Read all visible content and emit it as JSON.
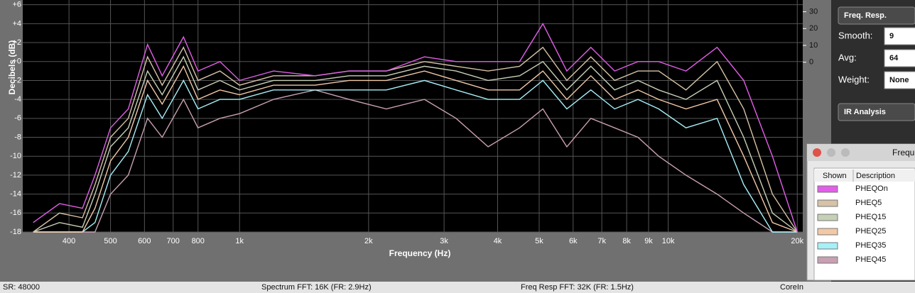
{
  "chart_data": {
    "type": "line",
    "y_label": "Decibels (dB)",
    "x_label": "Frequency (Hz)",
    "xscale": "log",
    "grid": true,
    "x": [
      330,
      380,
      430,
      460,
      500,
      550,
      610,
      660,
      740,
      800,
      900,
      1000,
      1200,
      1500,
      1800,
      2200,
      2700,
      3200,
      3800,
      4500,
      5100,
      5800,
      6600,
      7500,
      8500,
      9500,
      11000,
      13000,
      15000,
      17500,
      20000
    ],
    "xlim": [
      312,
      20600
    ],
    "xticks": [
      400,
      500,
      600,
      700,
      800,
      {
        "value": 1000,
        "label": "1k"
      },
      {
        "value": 2000,
        "label": "2k"
      },
      {
        "value": 3000,
        "label": "3k"
      },
      {
        "value": 4000,
        "label": "4k"
      },
      {
        "value": 5000,
        "label": "5k"
      },
      {
        "value": 6000,
        "label": "6k"
      },
      {
        "value": 7000,
        "label": "7k"
      },
      {
        "value": 8000,
        "label": "8k"
      },
      {
        "value": 9000,
        "label": "9k"
      },
      {
        "value": 10000,
        "label": "10k"
      },
      {
        "value": 20000,
        "label": "20k"
      }
    ],
    "ylim": [
      -18,
      6.5
    ],
    "yticks": [
      {
        "value": 6,
        "label": "+6"
      },
      {
        "value": 4,
        "label": "+4"
      },
      {
        "value": 2,
        "label": "+2"
      },
      {
        "value": 0,
        "label": "+0"
      },
      -2,
      -4,
      -6,
      -8,
      -10,
      -12,
      -14,
      -16,
      -18
    ],
    "y2lim": [
      -101,
      37
    ],
    "y2ticks": [
      0,
      10,
      20,
      30
    ],
    "series": [
      {
        "name": "PHEQOn",
        "color": "#e25ee8",
        "values": [
          -17,
          -15,
          -15.5,
          -12,
          -7,
          -5,
          1.8,
          -1.5,
          2.6,
          -1,
          0,
          -2,
          -1,
          -1.5,
          -1,
          -1,
          0.5,
          0,
          0,
          0,
          4,
          -1,
          1.5,
          -1,
          0,
          0,
          -1,
          1.5,
          -2,
          -10,
          -18
        ]
      },
      {
        "name": "PHEQ5",
        "color": "#d6c2a6",
        "values": [
          -18,
          -16,
          -16.5,
          -13,
          -8,
          -6,
          0.5,
          -2.5,
          1.5,
          -2,
          -1,
          -2.5,
          -1.5,
          -1.5,
          -1,
          -1,
          0,
          -0.5,
          -1,
          -0.5,
          1.5,
          -2,
          0.5,
          -2,
          -1,
          -1,
          -3,
          0,
          -5,
          -14,
          -18
        ]
      },
      {
        "name": "PHEQ15",
        "color": "#c6d0b6",
        "values": [
          -18,
          -17,
          -17.5,
          -14,
          -9,
          -7,
          -1,
          -3.5,
          0.5,
          -3,
          -2,
          -3,
          -2,
          -2,
          -1.5,
          -1.5,
          -0.5,
          -1,
          -2,
          -1.5,
          0,
          -3,
          -0.5,
          -3,
          -2,
          -3,
          -4,
          -2,
          -8,
          -16,
          -18
        ]
      },
      {
        "name": "PHEQ25",
        "color": "#f2c8a6",
        "values": [
          -18,
          -18,
          -18,
          -15.5,
          -10.5,
          -8,
          -2,
          -4.5,
          -0.5,
          -4,
          -3,
          -3.5,
          -2.5,
          -2.5,
          -2,
          -2,
          -1,
          -2,
          -3,
          -3,
          -1,
          -4,
          -1.5,
          -4,
          -3,
          -4,
          -5,
          -4,
          -10,
          -17,
          -18
        ]
      },
      {
        "name": "PHEQ35",
        "color": "#a6f0f8",
        "values": [
          -18,
          -18,
          -18,
          -17,
          -12,
          -9.5,
          -3.5,
          -6,
          -2,
          -5,
          -4,
          -4,
          -3,
          -3,
          -3,
          -3,
          -2,
          -3,
          -4,
          -4,
          -2,
          -5,
          -3,
          -5,
          -4,
          -5,
          -7,
          -6,
          -13,
          -18,
          -18
        ]
      },
      {
        "name": "PHEQ45",
        "color": "#c8a0b2",
        "values": [
          -18,
          -18,
          -18,
          -18,
          -14,
          -12,
          -6,
          -8,
          -4,
          -7,
          -6,
          -5.5,
          -4,
          -3,
          -4,
          -5,
          -4,
          -6,
          -9,
          -7,
          -5,
          -9,
          -6,
          -7,
          -8,
          -10,
          -12,
          -14,
          -16,
          -18,
          -18
        ]
      }
    ]
  },
  "sidebar": {
    "mode_button": "Freq. Resp.",
    "fields": [
      {
        "label": "Smooth:",
        "value": "9"
      },
      {
        "label": "Avg:",
        "value": "64"
      },
      {
        "label": "Weight:",
        "value": "None"
      }
    ],
    "ir_button": "IR Analysis"
  },
  "legend_window": {
    "title": "Frequ",
    "columns": [
      "Shown",
      "Description"
    ]
  },
  "status_bar": [
    "SR: 48000",
    "Spectrum FFT: 16K (FR: 2.9Hz)",
    "Freq Resp FFT: 32K (FR: 1.5Hz)",
    "CoreIn"
  ]
}
